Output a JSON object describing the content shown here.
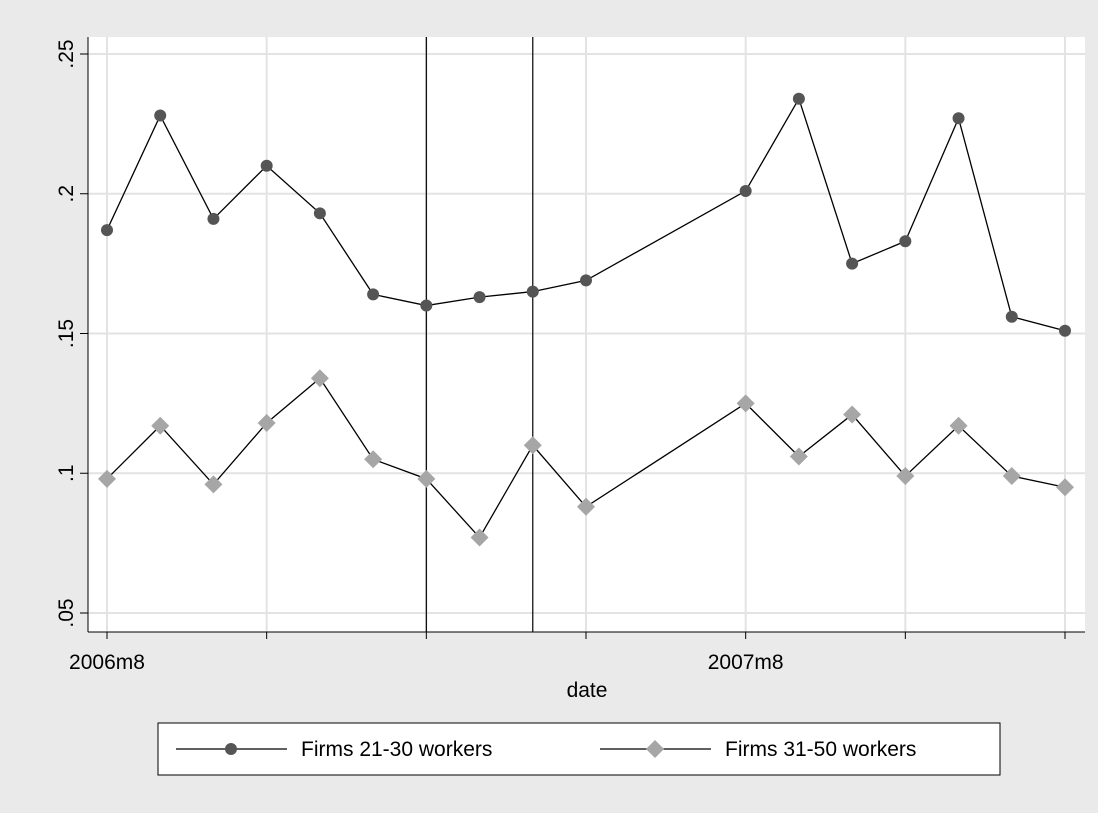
{
  "chart_data": {
    "type": "line",
    "title": "",
    "xlabel": "date",
    "ylabel": "",
    "x_tick_labels": [
      {
        "month_index": 0,
        "label": "2006m8"
      },
      {
        "month_index": 12,
        "label": "2007m8"
      }
    ],
    "x_ticks_month_index": [
      0,
      3,
      6,
      9,
      12,
      15,
      18
    ],
    "x_range_month_index": [
      0,
      18
    ],
    "y_ticks": [
      {
        "value": 0.05,
        "label": ".05"
      },
      {
        "value": 0.1,
        "label": ".1"
      },
      {
        "value": 0.15,
        "label": ".15"
      },
      {
        "value": 0.2,
        "label": ".2"
      },
      {
        "value": 0.25,
        "label": ".25"
      }
    ],
    "ylim": [
      0.05,
      0.25
    ],
    "grid": true,
    "reference_lines_month_index": [
      6,
      8
    ],
    "legend_position": "bottom",
    "series": [
      {
        "name": "Firms 21-30 workers",
        "marker": "circle",
        "color": "#555555",
        "points": [
          {
            "month_index": 0,
            "y": 0.187
          },
          {
            "month_index": 1,
            "y": 0.228
          },
          {
            "month_index": 2,
            "y": 0.191
          },
          {
            "month_index": 3,
            "y": 0.21
          },
          {
            "month_index": 4,
            "y": 0.193
          },
          {
            "month_index": 5,
            "y": 0.164
          },
          {
            "month_index": 6,
            "y": 0.16
          },
          {
            "month_index": 7,
            "y": 0.163
          },
          {
            "month_index": 8,
            "y": 0.165
          },
          {
            "month_index": 9,
            "y": 0.169
          },
          {
            "month_index": 12,
            "y": 0.201
          },
          {
            "month_index": 13,
            "y": 0.234
          },
          {
            "month_index": 14,
            "y": 0.175
          },
          {
            "month_index": 15,
            "y": 0.183
          },
          {
            "month_index": 16,
            "y": 0.227
          },
          {
            "month_index": 17,
            "y": 0.156
          },
          {
            "month_index": 18,
            "y": 0.151
          }
        ]
      },
      {
        "name": "Firms 31-50 workers",
        "marker": "diamond",
        "color": "#a6a6a6",
        "points": [
          {
            "month_index": 0,
            "y": 0.098
          },
          {
            "month_index": 1,
            "y": 0.117
          },
          {
            "month_index": 2,
            "y": 0.096
          },
          {
            "month_index": 3,
            "y": 0.118
          },
          {
            "month_index": 4,
            "y": 0.134
          },
          {
            "month_index": 5,
            "y": 0.105
          },
          {
            "month_index": 6,
            "y": 0.098
          },
          {
            "month_index": 7,
            "y": 0.077
          },
          {
            "month_index": 8,
            "y": 0.11
          },
          {
            "month_index": 9,
            "y": 0.088
          },
          {
            "month_index": 12,
            "y": 0.125
          },
          {
            "month_index": 13,
            "y": 0.106
          },
          {
            "month_index": 14,
            "y": 0.121
          },
          {
            "month_index": 15,
            "y": 0.099
          },
          {
            "month_index": 16,
            "y": 0.117
          },
          {
            "month_index": 17,
            "y": 0.099
          },
          {
            "month_index": 18,
            "y": 0.095
          }
        ]
      }
    ]
  },
  "colors": {
    "background": "#eaeaea",
    "plot_background": "#ffffff",
    "grid": "#e3e3e3",
    "line": "#000000"
  }
}
